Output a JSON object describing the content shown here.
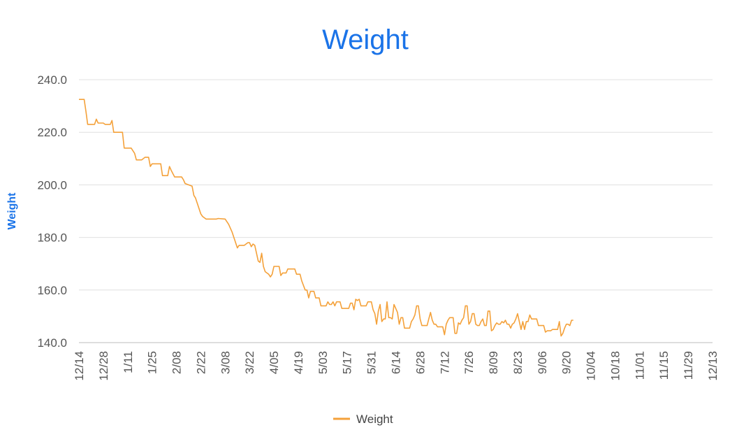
{
  "chart_data": {
    "type": "line",
    "title": "Weight",
    "ylabel": "Weight",
    "xlabel": "",
    "ylim": [
      140,
      240
    ],
    "yticks": [
      "140.0",
      "160.0",
      "180.0",
      "200.0",
      "220.0",
      "240.0"
    ],
    "xticks": [
      "12/14",
      "12/28",
      "1/11",
      "1/25",
      "2/08",
      "2/22",
      "3/08",
      "3/22",
      "4/05",
      "4/19",
      "5/03",
      "5/17",
      "5/31",
      "6/14",
      "6/28",
      "7/12",
      "7/26",
      "8/09",
      "8/23",
      "9/06",
      "9/20",
      "10/04",
      "10/18",
      "11/01",
      "11/15",
      "11/29",
      "12/13"
    ],
    "grid": true,
    "legend_position": "bottom",
    "color": "#f4a13a",
    "series": [
      {
        "name": "Weight",
        "x_unit": "days after 12/14",
        "points": [
          [
            0,
            232.5
          ],
          [
            1,
            232.5
          ],
          [
            3,
            232.5
          ],
          [
            4,
            228
          ],
          [
            5,
            223
          ],
          [
            7,
            223
          ],
          [
            9,
            223
          ],
          [
            10,
            225
          ],
          [
            11,
            223.5
          ],
          [
            14,
            223.5
          ],
          [
            15,
            223
          ],
          [
            18,
            223
          ],
          [
            19,
            224.5
          ],
          [
            20,
            220
          ],
          [
            25,
            220
          ],
          [
            26,
            214
          ],
          [
            30,
            214
          ],
          [
            32,
            212
          ],
          [
            33,
            209.5
          ],
          [
            36,
            209.5
          ],
          [
            38,
            210.5
          ],
          [
            40,
            210.5
          ],
          [
            41,
            207
          ],
          [
            42,
            208
          ],
          [
            47,
            208
          ],
          [
            48,
            203.5
          ],
          [
            51,
            203.5
          ],
          [
            52,
            207
          ],
          [
            53,
            205.5
          ],
          [
            55,
            203
          ],
          [
            59,
            203
          ],
          [
            60,
            202
          ],
          [
            61,
            200.5
          ],
          [
            63,
            200
          ],
          [
            65,
            199.5
          ],
          [
            66,
            196
          ],
          [
            67,
            195
          ],
          [
            69,
            191
          ],
          [
            70,
            189
          ],
          [
            71,
            188
          ],
          [
            73,
            187
          ],
          [
            79,
            187
          ],
          [
            80,
            187.2
          ],
          [
            84,
            187
          ],
          [
            86,
            185
          ],
          [
            88,
            182
          ],
          [
            90,
            178
          ],
          [
            91,
            176
          ],
          [
            92,
            177
          ],
          [
            95,
            177
          ],
          [
            97,
            178
          ],
          [
            98,
            178
          ],
          [
            99,
            176.5
          ],
          [
            100,
            177.5
          ],
          [
            101,
            177
          ],
          [
            103,
            171
          ],
          [
            104,
            170.5
          ],
          [
            105,
            174
          ],
          [
            106,
            169
          ],
          [
            107,
            167
          ],
          [
            108,
            166.5
          ],
          [
            109,
            166
          ],
          [
            110,
            165
          ],
          [
            111,
            166
          ],
          [
            112,
            169
          ],
          [
            115,
            169
          ],
          [
            116,
            165.5
          ],
          [
            117,
            166.5
          ],
          [
            119,
            166.5
          ],
          [
            120,
            168
          ],
          [
            124,
            168
          ],
          [
            125,
            166
          ],
          [
            127,
            166
          ],
          [
            128,
            163.5
          ],
          [
            130,
            160
          ],
          [
            131,
            160
          ],
          [
            132,
            157
          ],
          [
            133,
            159.5
          ],
          [
            135,
            159.5
          ],
          [
            136,
            157
          ],
          [
            138,
            157
          ],
          [
            139,
            154
          ],
          [
            142,
            154
          ],
          [
            143,
            155.5
          ],
          [
            144,
            154.5
          ],
          [
            145,
            154.5
          ],
          [
            146,
            155.5
          ],
          [
            147,
            154
          ],
          [
            148,
            155.5
          ],
          [
            150,
            155.5
          ],
          [
            151,
            153
          ],
          [
            155,
            153
          ],
          [
            156,
            155
          ],
          [
            157,
            155
          ],
          [
            158,
            152.5
          ],
          [
            159,
            156.5
          ],
          [
            160,
            156
          ],
          [
            161,
            156.5
          ],
          [
            162,
            154
          ],
          [
            163,
            154
          ],
          [
            165,
            154
          ],
          [
            166,
            155.5
          ],
          [
            168,
            155.5
          ],
          [
            169,
            152.5
          ],
          [
            170,
            151
          ],
          [
            171,
            147
          ],
          [
            172,
            152
          ],
          [
            173,
            154.5
          ],
          [
            174,
            148
          ],
          [
            175,
            149
          ],
          [
            176,
            149
          ],
          [
            177,
            155.5
          ],
          [
            178,
            149.5
          ],
          [
            179,
            149.5
          ],
          [
            180,
            149
          ],
          [
            181,
            154.5
          ],
          [
            182,
            153
          ],
          [
            183,
            151.5
          ],
          [
            184,
            147
          ],
          [
            185,
            149.5
          ],
          [
            186,
            149.5
          ],
          [
            187,
            145.5
          ],
          [
            190,
            145.5
          ],
          [
            191,
            148
          ],
          [
            192,
            149
          ],
          [
            193,
            150.5
          ],
          [
            194,
            154
          ],
          [
            195,
            154
          ],
          [
            196,
            149
          ],
          [
            197,
            146.5
          ],
          [
            200,
            146.5
          ],
          [
            201,
            149
          ],
          [
            202,
            151.5
          ],
          [
            203,
            148.5
          ],
          [
            204,
            147
          ],
          [
            205,
            147
          ],
          [
            206,
            146
          ],
          [
            209,
            146
          ],
          [
            210,
            143
          ],
          [
            211,
            147
          ],
          [
            212,
            148.5
          ],
          [
            213,
            149.5
          ],
          [
            215,
            149.5
          ],
          [
            216,
            143.5
          ],
          [
            217,
            143.5
          ],
          [
            218,
            147.5
          ],
          [
            219,
            147
          ],
          [
            220,
            148.5
          ],
          [
            221,
            149.5
          ],
          [
            222,
            154
          ],
          [
            223,
            154
          ],
          [
            224,
            147
          ],
          [
            225,
            148
          ],
          [
            226,
            151
          ],
          [
            227,
            151
          ],
          [
            228,
            147
          ],
          [
            229,
            146.5
          ],
          [
            230,
            146.5
          ],
          [
            231,
            148
          ],
          [
            232,
            149
          ],
          [
            233,
            146.5
          ],
          [
            234,
            146.5
          ],
          [
            235,
            152
          ],
          [
            236,
            152
          ],
          [
            237,
            144.5
          ],
          [
            238,
            145
          ],
          [
            239,
            146.5
          ],
          [
            240,
            147.5
          ],
          [
            241,
            147
          ],
          [
            242,
            147
          ],
          [
            243,
            148
          ],
          [
            244,
            147.5
          ],
          [
            245,
            148.5
          ],
          [
            246,
            147
          ],
          [
            247,
            147
          ],
          [
            248,
            145.5
          ],
          [
            249,
            147
          ],
          [
            250,
            147.5
          ],
          [
            251,
            149
          ],
          [
            252,
            151
          ],
          [
            253,
            148
          ],
          [
            254,
            145
          ],
          [
            255,
            148
          ],
          [
            256,
            145
          ],
          [
            257,
            148
          ],
          [
            258,
            148
          ],
          [
            259,
            150.5
          ],
          [
            260,
            149
          ],
          [
            263,
            149
          ],
          [
            264,
            146.5
          ],
          [
            267,
            146.5
          ],
          [
            268,
            144
          ],
          [
            269,
            144.5
          ],
          [
            271,
            144.5
          ],
          [
            272,
            145
          ],
          [
            275,
            145
          ],
          [
            276,
            148
          ],
          [
            277,
            142.5
          ],
          [
            278,
            143.5
          ],
          [
            279,
            145.5
          ],
          [
            280,
            147
          ],
          [
            281,
            147
          ],
          [
            282,
            146.5
          ],
          [
            283,
            148.5
          ],
          [
            284,
            148.5
          ]
        ]
      }
    ]
  }
}
